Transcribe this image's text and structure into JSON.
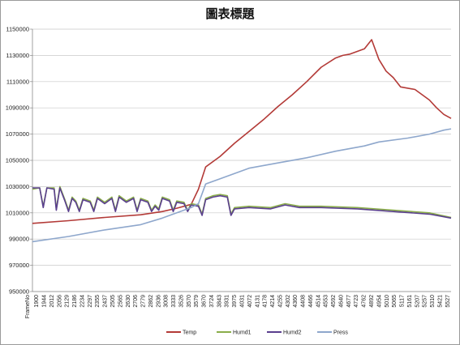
{
  "chart_data": {
    "type": "line",
    "title": "圖表標題",
    "ylim": [
      950000,
      1150000
    ],
    "yticks": [
      950000,
      970000,
      990000,
      1010000,
      1030000,
      1050000,
      1070000,
      1090000,
      1110000,
      1130000,
      1150000
    ],
    "x_axis_header": "FrameNo",
    "x_tick_labels": [
      "1900",
      "1944",
      "2012",
      "2056",
      "2129",
      "2186",
      "2234",
      "2297",
      "2355",
      "2437",
      "2505",
      "2565",
      "2630",
      "2706",
      "2779",
      "2862",
      "2936",
      "3008",
      "3333",
      "3526",
      "3570",
      "3579",
      "3670",
      "3724",
      "3843",
      "3931",
      "3975",
      "4031",
      "4072",
      "4131",
      "4178",
      "4214",
      "4255",
      "4302",
      "4360",
      "4408",
      "4466",
      "4514",
      "4553",
      "4592",
      "4640",
      "4677",
      "4723",
      "4762",
      "4892",
      "4954",
      "5010",
      "5065",
      "5117",
      "5161",
      "5207",
      "5257",
      "5310",
      "5421",
      "5527"
    ],
    "grid": "horizontal",
    "legend_position": "bottom",
    "series": [
      {
        "name": "Temp",
        "color": "#b33a37",
        "points": [
          [
            0,
            1002000
          ],
          [
            5,
            1004000
          ],
          [
            10,
            1006500
          ],
          [
            15,
            1008500
          ],
          [
            18,
            1011000
          ],
          [
            20,
            1013500
          ],
          [
            22,
            1016500
          ],
          [
            23,
            1028000
          ],
          [
            24,
            1045000
          ],
          [
            26,
            1053000
          ],
          [
            28,
            1063000
          ],
          [
            30,
            1072000
          ],
          [
            32,
            1081000
          ],
          [
            34,
            1091000
          ],
          [
            36,
            1100000
          ],
          [
            38,
            1110000
          ],
          [
            40,
            1121000
          ],
          [
            42,
            1128000
          ],
          [
            43,
            1130000
          ],
          [
            44,
            1131000
          ],
          [
            45,
            1133000
          ],
          [
            46,
            1135000
          ],
          [
            47,
            1142000
          ],
          [
            48,
            1127000
          ],
          [
            49,
            1118000
          ],
          [
            50,
            1113000
          ],
          [
            51,
            1106000
          ],
          [
            53,
            1104000
          ],
          [
            54,
            1100000
          ],
          [
            55,
            1096000
          ],
          [
            56,
            1090000
          ],
          [
            57,
            1085000
          ],
          [
            58,
            1082000
          ]
        ]
      },
      {
        "name": "Humd1",
        "color": "#8aad4a",
        "points": [
          [
            0,
            1028000
          ],
          [
            1,
            1029000
          ],
          [
            1.5,
            1015000
          ],
          [
            2,
            1029000
          ],
          [
            3,
            1029000
          ],
          [
            3.3,
            1013000
          ],
          [
            3.8,
            1030000
          ],
          [
            4.5,
            1020000
          ],
          [
            5,
            1012000
          ],
          [
            5.5,
            1022000
          ],
          [
            6,
            1019000
          ],
          [
            6.5,
            1012000
          ],
          [
            7,
            1021000
          ],
          [
            8,
            1019000
          ],
          [
            8.5,
            1012000
          ],
          [
            9,
            1022000
          ],
          [
            10,
            1018000
          ],
          [
            11,
            1022000
          ],
          [
            11.5,
            1012000
          ],
          [
            12,
            1023000
          ],
          [
            13,
            1019000
          ],
          [
            14,
            1022000
          ],
          [
            14.5,
            1012000
          ],
          [
            15,
            1021000
          ],
          [
            16,
            1019000
          ],
          [
            16.5,
            1012000
          ],
          [
            17,
            1016000
          ],
          [
            17.5,
            1013000
          ],
          [
            18,
            1022000
          ],
          [
            19,
            1020000
          ],
          [
            19.5,
            1012000
          ],
          [
            20,
            1019000
          ],
          [
            21,
            1018000
          ],
          [
            21.5,
            1012000
          ],
          [
            22,
            1017000
          ],
          [
            23,
            1016000
          ],
          [
            23.5,
            1009000
          ],
          [
            24,
            1021000
          ],
          [
            25,
            1023000
          ],
          [
            26,
            1024000
          ],
          [
            27,
            1023000
          ],
          [
            27.5,
            1009000
          ],
          [
            28,
            1014000
          ],
          [
            30,
            1015000
          ],
          [
            33,
            1014000
          ],
          [
            35,
            1017000
          ],
          [
            37,
            1015000
          ],
          [
            40,
            1015000
          ],
          [
            45,
            1014000
          ],
          [
            50,
            1012000
          ],
          [
            55,
            1010000
          ],
          [
            58,
            1006500
          ]
        ]
      },
      {
        "name": "Humd2",
        "color": "#5a3f8e",
        "points": [
          [
            0,
            1029000
          ],
          [
            1,
            1029000
          ],
          [
            1.5,
            1014000
          ],
          [
            2,
            1029000
          ],
          [
            3,
            1028000
          ],
          [
            3.3,
            1012000
          ],
          [
            3.8,
            1029000
          ],
          [
            4.5,
            1019000
          ],
          [
            5,
            1011000
          ],
          [
            5.5,
            1021000
          ],
          [
            6,
            1018000
          ],
          [
            6.5,
            1011000
          ],
          [
            7,
            1020000
          ],
          [
            8,
            1018000
          ],
          [
            8.5,
            1011000
          ],
          [
            9,
            1021000
          ],
          [
            10,
            1017000
          ],
          [
            11,
            1021000
          ],
          [
            11.5,
            1011000
          ],
          [
            12,
            1022000
          ],
          [
            13,
            1018000
          ],
          [
            14,
            1021000
          ],
          [
            14.5,
            1011000
          ],
          [
            15,
            1020000
          ],
          [
            16,
            1018000
          ],
          [
            16.5,
            1011000
          ],
          [
            17,
            1015000
          ],
          [
            17.5,
            1012000
          ],
          [
            18,
            1021000
          ],
          [
            19,
            1019000
          ],
          [
            19.5,
            1011000
          ],
          [
            20,
            1018000
          ],
          [
            21,
            1017000
          ],
          [
            21.5,
            1011000
          ],
          [
            22,
            1016000
          ],
          [
            23,
            1015000
          ],
          [
            23.5,
            1008000
          ],
          [
            24,
            1020000
          ],
          [
            25,
            1022000
          ],
          [
            26,
            1023000
          ],
          [
            27,
            1022000
          ],
          [
            27.5,
            1008000
          ],
          [
            28,
            1013000
          ],
          [
            30,
            1014000
          ],
          [
            33,
            1013000
          ],
          [
            35,
            1016000
          ],
          [
            37,
            1014000
          ],
          [
            40,
            1014000
          ],
          [
            45,
            1013000
          ],
          [
            50,
            1011000
          ],
          [
            55,
            1009000
          ],
          [
            58,
            1006000
          ]
        ]
      },
      {
        "name": "Press",
        "color": "#8ea7cc",
        "points": [
          [
            0,
            988000
          ],
          [
            5,
            992000
          ],
          [
            10,
            997000
          ],
          [
            15,
            1001000
          ],
          [
            18,
            1006000
          ],
          [
            20,
            1010000
          ],
          [
            22,
            1014000
          ],
          [
            23,
            1017000
          ],
          [
            24,
            1032000
          ],
          [
            26,
            1036000
          ],
          [
            28,
            1040000
          ],
          [
            30,
            1044000
          ],
          [
            34,
            1048000
          ],
          [
            38,
            1052000
          ],
          [
            42,
            1057000
          ],
          [
            46,
            1061000
          ],
          [
            48,
            1064000
          ],
          [
            52,
            1067000
          ],
          [
            55,
            1070000
          ],
          [
            57,
            1073000
          ],
          [
            58,
            1074000
          ]
        ]
      }
    ]
  }
}
